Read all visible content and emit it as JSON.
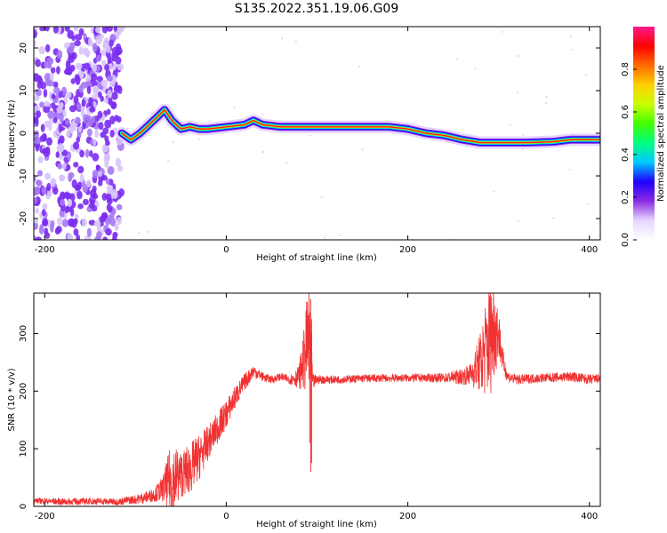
{
  "title": "S135.2022.351.19.06.G09",
  "chart_data": [
    {
      "type": "heatmap",
      "xlabel": "Height of straight line (km)",
      "ylabel": "Frequency (Hz)",
      "xlim": [
        -212,
        412
      ],
      "ylim": [
        -25,
        25
      ],
      "xticks": [
        -200,
        0,
        200,
        400
      ],
      "yticks": [
        -20,
        -10,
        0,
        10,
        20
      ],
      "colorbar": {
        "label": "Normalized spectral amplitude",
        "range": [
          0,
          1
        ],
        "ticks": [
          0.0,
          0.2,
          0.4,
          0.6,
          0.8
        ],
        "colors": [
          "#ffffff",
          "#e6d6ff",
          "#8a2be2",
          "#1f00ff",
          "#00c8ff",
          "#00ff80",
          "#40ff00",
          "#c8ff00",
          "#ffd000",
          "#ff6a00",
          "#ff0000",
          "#ff1a8c"
        ]
      },
      "ridge": {
        "x": [
          -115,
          -105,
          -95,
          -85,
          -75,
          -68,
          -60,
          -50,
          -40,
          -30,
          -20,
          0,
          20,
          30,
          40,
          60,
          80,
          120,
          160,
          180,
          200,
          220,
          240,
          260,
          280,
          300,
          330,
          360,
          380,
          400,
          412
        ],
        "y": [
          0,
          -1.5,
          0,
          2,
          4,
          5.5,
          3,
          1,
          1.5,
          1,
          1,
          1.5,
          2,
          3,
          2,
          1.5,
          1.5,
          1.5,
          1.5,
          1.5,
          1,
          0,
          -0.5,
          -1.5,
          -2.2,
          -2.2,
          -2.2,
          -2,
          -1.5,
          -1.5,
          -1.5
        ]
      },
      "noise_region_x": [
        -212,
        -115
      ]
    },
    {
      "type": "line",
      "xlabel": "Height of straight line (km)",
      "ylabel": "SNR (10 * v/v)",
      "xlim": [
        -212,
        412
      ],
      "ylim": [
        0,
        370
      ],
      "xticks": [
        -200,
        0,
        200,
        400
      ],
      "yticks": [
        0,
        100,
        200,
        300
      ],
      "series": [
        {
          "color": "#f03232",
          "x": [
            -212,
            -180,
            -150,
            -120,
            -100,
            -90,
            -80,
            -70,
            -60,
            -50,
            -40,
            -30,
            -20,
            -10,
            0,
            10,
            20,
            30,
            40,
            50,
            60,
            70,
            80,
            85,
            90,
            93,
            95,
            100,
            120,
            150,
            200,
            240,
            260,
            270,
            280,
            290,
            295,
            300,
            305,
            310,
            320,
            350,
            380,
            400,
            412
          ],
          "y": [
            10,
            8,
            9,
            8,
            12,
            15,
            20,
            30,
            45,
            55,
            65,
            85,
            110,
            135,
            160,
            190,
            215,
            235,
            225,
            220,
            225,
            220,
            225,
            250,
            290,
            280,
            215,
            220,
            220,
            222,
            223,
            223,
            225,
            230,
            250,
            290,
            310,
            300,
            250,
            225,
            220,
            223,
            225,
            220,
            222
          ],
          "envelope": [
            5,
            6,
            6,
            6,
            8,
            10,
            12,
            22,
            70,
            40,
            45,
            40,
            30,
            28,
            25,
            20,
            15,
            12,
            8,
            7,
            7,
            8,
            20,
            50,
            90,
            140,
            15,
            8,
            7,
            7,
            7,
            8,
            14,
            20,
            55,
            105,
            90,
            45,
            20,
            10,
            9,
            8,
            9,
            9,
            8
          ]
        }
      ]
    }
  ]
}
